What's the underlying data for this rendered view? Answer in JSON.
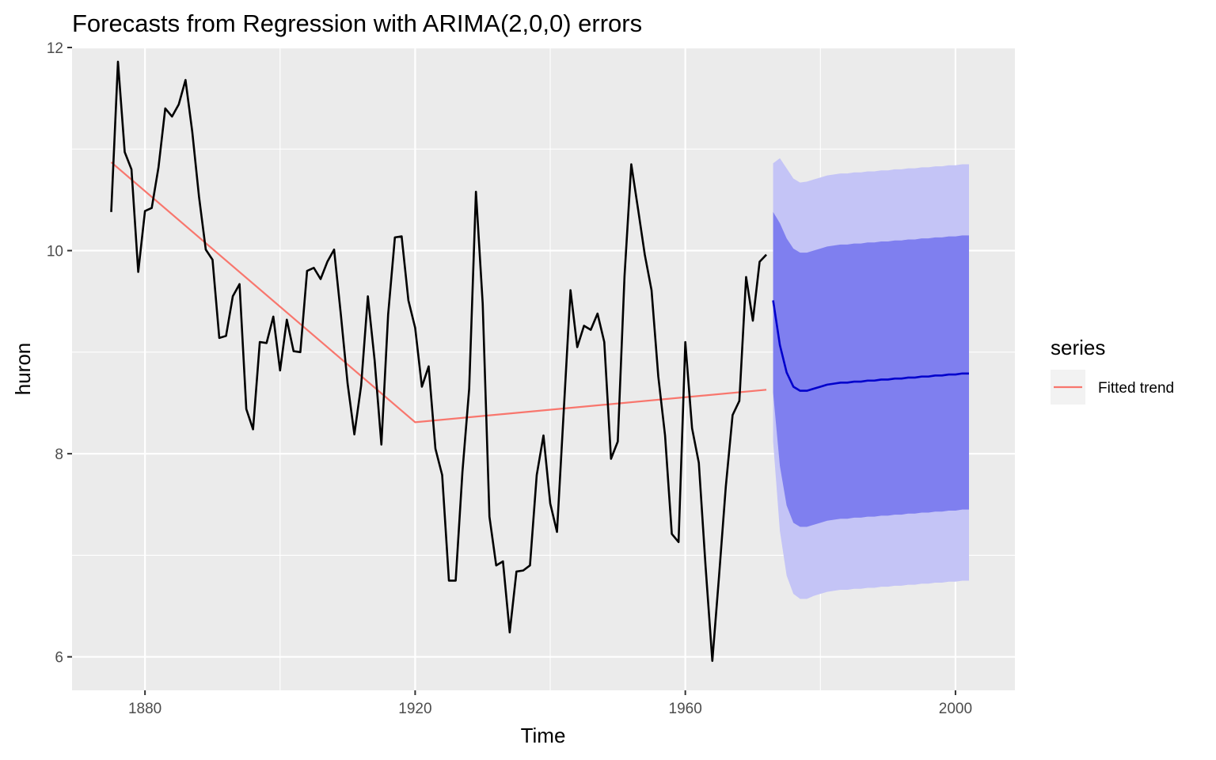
{
  "chart_data": {
    "type": "line",
    "title": "Forecasts from Regression with ARIMA(2,0,0) errors",
    "xlabel": "Time",
    "ylabel": "huron",
    "xlim": [
      1869.2,
      2008.8
    ],
    "ylim": [
      5.67,
      12.0
    ],
    "x_ticks": [
      1880,
      1920,
      1960,
      2000
    ],
    "x_tick_labels": [
      "1880",
      "1920",
      "1960",
      "2000"
    ],
    "y_ticks": [
      6,
      8,
      10,
      12
    ],
    "y_tick_labels": [
      "6",
      "8",
      "10",
      "12"
    ],
    "grid": true,
    "legend": {
      "title": "series",
      "position": "right",
      "entries": [
        "Fitted trend"
      ]
    },
    "colors": {
      "panel": "#EBEBEB",
      "grid": "#FFFFFF",
      "observed": "#000000",
      "trend": "#F8766D",
      "forecast_mean": "#0000CC",
      "pi80": "#7F7FEF",
      "pi95": "#C4C4F6",
      "legend_key_bg": "#F2F2F2"
    },
    "observed": {
      "x_start": 1875,
      "values": [
        10.38,
        11.86,
        10.97,
        10.8,
        9.79,
        10.39,
        10.42,
        10.82,
        11.4,
        11.32,
        11.44,
        11.68,
        11.17,
        10.53,
        10.01,
        9.91,
        9.14,
        9.16,
        9.55,
        9.67,
        8.44,
        8.24,
        9.1,
        9.09,
        9.35,
        8.82,
        9.32,
        9.01,
        9.0,
        9.8,
        9.83,
        9.72,
        9.89,
        10.01,
        9.37,
        8.69,
        8.19,
        8.67,
        9.55,
        8.92,
        8.09,
        9.37,
        10.13,
        10.14,
        9.51,
        9.24,
        8.66,
        8.86,
        8.05,
        7.79,
        6.75,
        6.75,
        7.82,
        8.64,
        10.58,
        9.48,
        7.38,
        6.9,
        6.94,
        6.24,
        6.84,
        6.85,
        6.9,
        7.79,
        8.18,
        7.51,
        7.23,
        8.42,
        9.61,
        9.05,
        9.26,
        9.22,
        9.38,
        9.1,
        7.95,
        8.12,
        9.75,
        10.85,
        10.41,
        9.96,
        9.61,
        8.76,
        8.18,
        7.21,
        7.13,
        9.1,
        8.25,
        7.91,
        6.89,
        5.96,
        6.8,
        7.68,
        8.38,
        8.52,
        9.74,
        9.31,
        9.89,
        9.96
      ]
    },
    "fitted_trend": {
      "x": [
        1875,
        1920,
        1972
      ],
      "y": [
        10.87,
        8.31,
        8.63
      ]
    },
    "forecast": {
      "x_start": 1973,
      "step": 1,
      "mean": [
        9.51,
        9.07,
        8.8,
        8.66,
        8.62,
        8.62,
        8.64,
        8.66,
        8.68,
        8.69,
        8.7,
        8.7,
        8.71,
        8.71,
        8.72,
        8.72,
        8.73,
        8.73,
        8.74,
        8.74,
        8.75,
        8.75,
        8.76,
        8.76,
        8.77,
        8.77,
        8.78,
        8.78,
        8.79,
        8.79
      ],
      "lo80": [
        8.6,
        7.88,
        7.49,
        7.32,
        7.28,
        7.28,
        7.3,
        7.32,
        7.34,
        7.35,
        7.36,
        7.36,
        7.37,
        7.37,
        7.38,
        7.38,
        7.39,
        7.39,
        7.4,
        7.4,
        7.41,
        7.41,
        7.42,
        7.42,
        7.43,
        7.43,
        7.44,
        7.44,
        7.45,
        7.45
      ],
      "hi80": [
        10.38,
        10.27,
        10.12,
        10.02,
        9.98,
        9.98,
        10.0,
        10.02,
        10.04,
        10.05,
        10.06,
        10.06,
        10.07,
        10.07,
        10.08,
        10.08,
        10.09,
        10.09,
        10.1,
        10.1,
        10.11,
        10.11,
        10.12,
        10.12,
        10.13,
        10.13,
        10.14,
        10.14,
        10.15,
        10.15
      ],
      "lo95": [
        8.12,
        7.24,
        6.8,
        6.62,
        6.57,
        6.57,
        6.6,
        6.62,
        6.64,
        6.65,
        6.66,
        6.66,
        6.67,
        6.67,
        6.68,
        6.68,
        6.69,
        6.69,
        6.7,
        6.7,
        6.71,
        6.71,
        6.72,
        6.72,
        6.73,
        6.73,
        6.74,
        6.74,
        6.75,
        6.75
      ],
      "hi95": [
        10.86,
        10.91,
        10.81,
        10.71,
        10.67,
        10.68,
        10.7,
        10.72,
        10.74,
        10.75,
        10.76,
        10.76,
        10.77,
        10.77,
        10.78,
        10.78,
        10.79,
        10.79,
        10.8,
        10.8,
        10.81,
        10.81,
        10.82,
        10.82,
        10.83,
        10.83,
        10.84,
        10.84,
        10.85,
        10.85
      ]
    }
  }
}
